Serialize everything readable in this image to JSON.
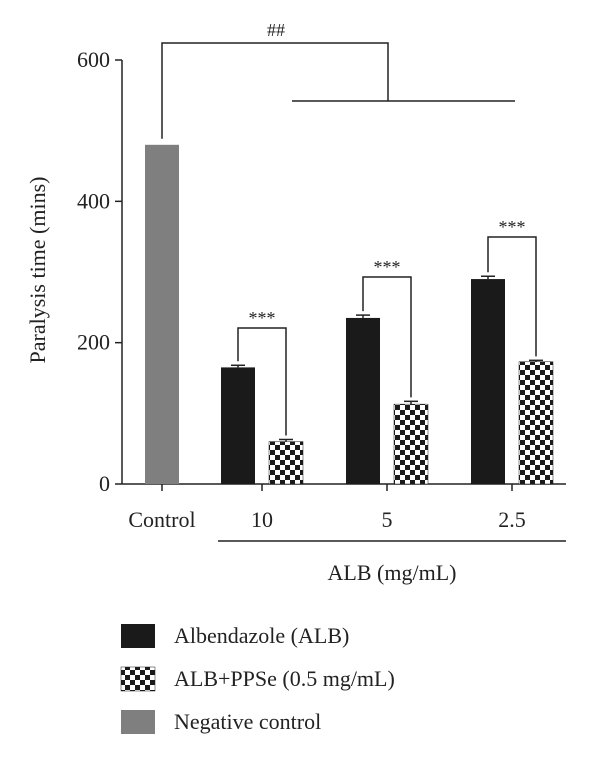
{
  "chart_data": {
    "type": "bar",
    "ylabel": "Paralysis time (mins)",
    "xlabel": "ALB (mg/mL)",
    "ylim": [
      0,
      600
    ],
    "yticks": [
      0,
      200,
      400,
      600
    ],
    "categories": [
      "Control",
      "10",
      "5",
      "2.5"
    ],
    "series": [
      {
        "name": "Negative control",
        "color": "#7f7f7f",
        "pattern": "solid",
        "values": [
          480,
          null,
          null,
          null
        ],
        "errors": [
          0,
          null,
          null,
          null
        ]
      },
      {
        "name": "Albendazole (ALB)",
        "color": "#1a1a1a",
        "pattern": "solid",
        "values": [
          null,
          165,
          235,
          290
        ],
        "errors": [
          null,
          3,
          4,
          4
        ]
      },
      {
        "name": "ALB+PPSe (0.5 mg/mL)",
        "color": "#1a1a1a",
        "pattern": "checker",
        "values": [
          null,
          60,
          113,
          173
        ],
        "errors": [
          null,
          3,
          4,
          2
        ]
      }
    ],
    "annotations": {
      "pair_sig": "***",
      "group_sig": "##"
    },
    "legend": {
      "position": "bottom-left",
      "entries": [
        "Albendazole (ALB)",
        "ALB+PPSe (0.5 mg/mL)",
        "Negative control"
      ]
    },
    "grid": false
  }
}
